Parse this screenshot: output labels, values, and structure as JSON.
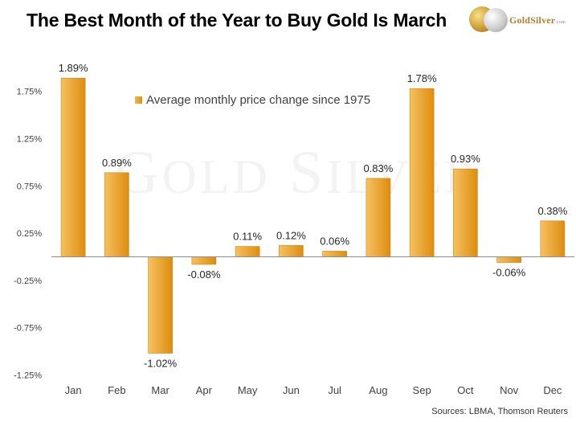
{
  "title": "The Best Month of the Year to Buy Gold Is March",
  "logo": {
    "name": "GoldSilver",
    "suffix": ".com"
  },
  "watermark": {
    "big1": "G",
    "small1": "OLD",
    "big2": "S",
    "small2": "ILVER"
  },
  "source": "Sources: LBMA, Thomson Reuters",
  "colors": {
    "bar_light": "#f3bd5d",
    "bar_dark": "#de8e10",
    "axis": "#8c8c8c"
  },
  "chart_data": {
    "type": "bar",
    "categories": [
      "Jan",
      "Feb",
      "Mar",
      "Apr",
      "May",
      "Jun",
      "Jul",
      "Aug",
      "Sep",
      "Oct",
      "Nov",
      "Dec"
    ],
    "series": [
      {
        "name": "Average monthly price change since 1975",
        "values": [
          1.89,
          0.89,
          -1.02,
          -0.08,
          0.11,
          0.12,
          0.06,
          0.83,
          1.78,
          0.93,
          -0.06,
          0.38
        ]
      }
    ],
    "data_labels": [
      "1.89%",
      "0.89%",
      "-1.02%",
      "-0.08%",
      "0.11%",
      "0.12%",
      "0.06%",
      "0.83%",
      "1.78%",
      "0.93%",
      "-0.06%",
      "0.38%"
    ],
    "yticks": [
      1.75,
      1.25,
      0.75,
      0.25,
      -0.25,
      -0.75,
      -1.25
    ],
    "ytick_labels": [
      "1.75%",
      "1.25%",
      "0.75%",
      "0.25%",
      "-0.25%",
      "-0.75%",
      "-1.25%"
    ],
    "ylim": [
      -1.3,
      2.0
    ],
    "legend": "top-left",
    "grid": false
  }
}
